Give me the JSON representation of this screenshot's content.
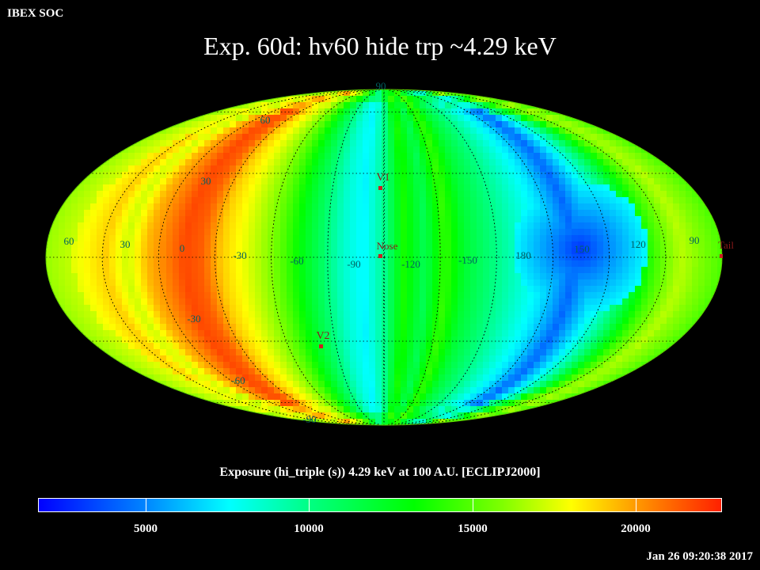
{
  "header": {
    "corner_label": "IBEX SOC",
    "title": "Exp.   60d: hv60 hide trp ~4.29 keV"
  },
  "colors": {
    "background": "#000000",
    "grid": "#000000",
    "longitude_labels": "#006060",
    "marker": "#cc2020",
    "marker_label": "#8b1a1a"
  },
  "map": {
    "projection": "Mollweide (elliptical all-sky)",
    "latitude_labels": [
      "90",
      "60",
      "30",
      "-30",
      "-60",
      "-90"
    ],
    "longitude_labels": [
      "60",
      "30",
      "0",
      "-30",
      "-60",
      "-90",
      "-120",
      "-150",
      "180",
      "150",
      "120",
      "90"
    ],
    "markers": [
      {
        "label": "V1"
      },
      {
        "label": "Nose"
      },
      {
        "label": "V2"
      },
      {
        "label": "Tail"
      }
    ],
    "colormap": [
      "#0000ff",
      "#0080ff",
      "#00ffff",
      "#00ff80",
      "#00ff00",
      "#80ff00",
      "#ffff00",
      "#ff8000",
      "#ff2000"
    ]
  },
  "colorbar": {
    "title": "Exposure (hi_triple (s))  4.29 keV at 100 A.U. [ECLIPJ2000]",
    "range": [
      2000,
      23000
    ],
    "ticks": [
      "5000",
      "10000",
      "15000",
      "20000"
    ]
  },
  "footer": {
    "timestamp": "Jan 26 09:20:38 2017"
  }
}
